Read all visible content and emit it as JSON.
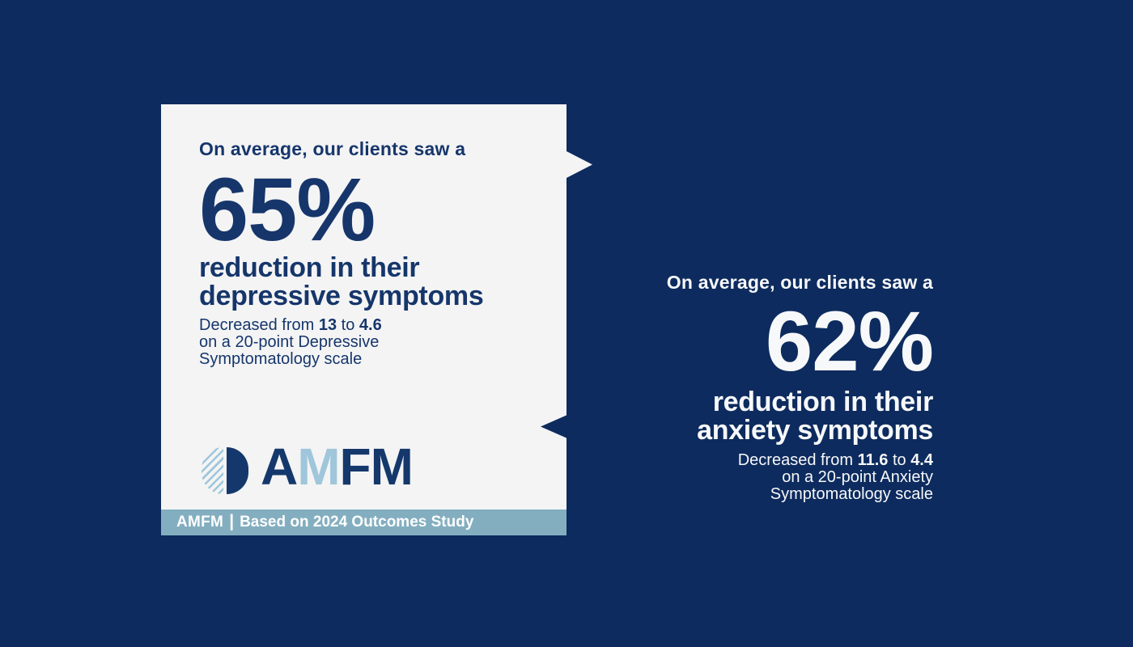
{
  "colors": {
    "background": "#0d2b5e",
    "card_bg": "#f4f4f5",
    "card_text": "#16366b",
    "light_text": "#f7f8f9",
    "footer_bar_bg": "#83aec0",
    "logo_navy": "#14386b",
    "logo_light_blue": "#9fc6da"
  },
  "depression_card": {
    "intro": "On average, our clients saw a",
    "stat": "65%",
    "headline_line1": "reduction in their",
    "headline_line2": "depressive symptoms",
    "detail": {
      "prefix": "Decreased from ",
      "from_value": "13",
      "separator": " to ",
      "to_value": "4.6",
      "line2": "on a 20-point Depressive",
      "line3": "Symptomatology scale"
    },
    "logo": {
      "l1": "A",
      "l2": "M",
      "l3": "F",
      "l4": "M"
    },
    "footer": {
      "brand": "AMFM",
      "separator": "|",
      "caption": "Based on 2024 Outcomes Study"
    }
  },
  "anxiety_panel": {
    "intro": "On average, our clients saw a",
    "stat": "62%",
    "headline_line1": "reduction in their",
    "headline_line2": "anxiety symptoms",
    "detail": {
      "prefix": "Decreased from ",
      "from_value": "11.6",
      "separator": " to ",
      "to_value": "4.4",
      "line2": "on a 20-point Anxiety",
      "line3": "Symptomatology scale"
    }
  }
}
